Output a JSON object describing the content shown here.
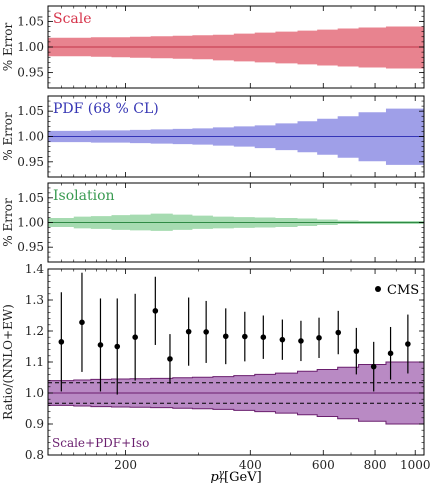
{
  "chart_data": {
    "type": "area",
    "x_axis": {
      "label_main": "p",
      "label_sup": "γ",
      "label_sub": "T",
      "label_unit": "[GeV]",
      "scale": "log",
      "range": [
        130,
        1050
      ],
      "tick_labels": [
        "200",
        "400",
        "600",
        "800",
        "1000"
      ],
      "tick_values": [
        200,
        400,
        600,
        800,
        1000
      ]
    },
    "bins": [
      [
        130,
        150
      ],
      [
        150,
        165
      ],
      [
        165,
        185
      ],
      [
        185,
        205
      ],
      [
        205,
        230
      ],
      [
        230,
        260
      ],
      [
        260,
        290
      ],
      [
        290,
        325
      ],
      [
        325,
        365
      ],
      [
        365,
        410
      ],
      [
        410,
        460
      ],
      [
        460,
        520
      ],
      [
        520,
        580
      ],
      [
        580,
        650
      ],
      [
        650,
        730
      ],
      [
        730,
        850
      ],
      [
        850,
        1050
      ]
    ],
    "panels": [
      {
        "id": "scale",
        "label": "Scale",
        "ylabel": "% Error",
        "ylim": [
          0.92,
          1.08
        ],
        "yticks": [
          0.95,
          1.0,
          1.05
        ],
        "ytick_labels": [
          "0.95",
          "1.00",
          "1.05"
        ],
        "band_color": "#e8838f",
        "line_color": "#c23448",
        "label_color": "#d6344b",
        "center": 1.0,
        "upper": [
          1.018,
          1.018,
          1.019,
          1.019,
          1.02,
          1.021,
          1.022,
          1.023,
          1.024,
          1.026,
          1.028,
          1.03,
          1.032,
          1.034,
          1.036,
          1.038,
          1.04
        ],
        "lower": [
          0.982,
          0.982,
          0.981,
          0.98,
          0.979,
          0.978,
          0.977,
          0.976,
          0.974,
          0.972,
          0.97,
          0.968,
          0.966,
          0.964,
          0.962,
          0.96,
          0.958
        ]
      },
      {
        "id": "pdf",
        "label": "PDF (68 % CL)",
        "ylabel": "% Error",
        "ylim": [
          0.92,
          1.08
        ],
        "yticks": [
          0.95,
          1.0,
          1.05
        ],
        "ytick_labels": [
          "0.95",
          "1.00",
          "1.05"
        ],
        "band_color": "#9f9fe8",
        "line_color": "#3535b8",
        "label_color": "#3636b4",
        "center": 1.0,
        "upper": [
          1.011,
          1.011,
          1.012,
          1.012,
          1.013,
          1.014,
          1.015,
          1.016,
          1.018,
          1.02,
          1.022,
          1.026,
          1.03,
          1.035,
          1.04,
          1.048,
          1.055
        ],
        "lower": [
          0.989,
          0.989,
          0.988,
          0.988,
          0.987,
          0.986,
          0.985,
          0.984,
          0.982,
          0.98,
          0.977,
          0.973,
          0.969,
          0.964,
          0.958,
          0.951,
          0.944
        ]
      },
      {
        "id": "isolation",
        "label": "Isolation",
        "ylabel": "% Error",
        "ylim": [
          0.92,
          1.08
        ],
        "yticks": [
          0.95,
          1.0,
          1.05
        ],
        "ytick_labels": [
          "0.95",
          "1.00",
          "1.05"
        ],
        "band_color": "#a6dbb1",
        "line_color": "#2f8a45",
        "label_color": "#3a9b52",
        "center": 1.0,
        "upper": [
          1.009,
          1.012,
          1.013,
          1.015,
          1.016,
          1.018,
          1.016,
          1.014,
          1.012,
          1.011,
          1.01,
          1.009,
          1.008,
          1.006,
          1.004,
          1.003,
          1.003
        ],
        "lower": [
          0.991,
          0.988,
          0.987,
          0.985,
          0.984,
          0.983,
          0.985,
          0.987,
          0.988,
          0.989,
          0.99,
          0.991,
          0.993,
          0.995,
          0.997,
          0.997,
          0.997
        ]
      }
    ],
    "ratio_panel": {
      "ylabel": "Ratio/(NNLO+EW)",
      "ylim": [
        0.8,
        1.4
      ],
      "yticks": [
        0.8,
        0.9,
        1.0,
        1.1,
        1.2,
        1.3,
        1.4
      ],
      "ytick_labels": [
        "0.8",
        "0.9",
        "1.0",
        "1.1",
        "1.2",
        "1.3",
        "1.4"
      ],
      "band_label": "Scale+PDF+Iso",
      "band_label_color": "#6a1f6e",
      "band_color": "#b98ac4",
      "edge_color": "#6a1f6e",
      "upper": [
        1.04,
        1.042,
        1.044,
        1.045,
        1.046,
        1.047,
        1.049,
        1.051,
        1.053,
        1.056,
        1.06,
        1.064,
        1.07,
        1.076,
        1.083,
        1.092,
        1.1
      ],
      "lower": [
        0.96,
        0.958,
        0.956,
        0.955,
        0.954,
        0.953,
        0.951,
        0.949,
        0.947,
        0.944,
        0.94,
        0.935,
        0.93,
        0.924,
        0.917,
        0.909,
        0.9
      ],
      "dashed_upper": 1.033,
      "dashed_lower": 0.967,
      "center": 1.0,
      "legend": {
        "label": "CMS",
        "marker": "filled-circle",
        "placement": "top-right"
      },
      "cms_points": [
        {
          "x": 140,
          "y": 1.165,
          "err": 0.16
        },
        {
          "x": 157,
          "y": 1.228,
          "err": 0.16
        },
        {
          "x": 174,
          "y": 1.155,
          "err": 0.15
        },
        {
          "x": 191,
          "y": 1.15,
          "err": 0.155
        },
        {
          "x": 211,
          "y": 1.18,
          "err": 0.14
        },
        {
          "x": 236,
          "y": 1.265,
          "err": 0.11
        },
        {
          "x": 256,
          "y": 1.11,
          "err": 0.08
        },
        {
          "x": 284,
          "y": 1.198,
          "err": 0.11
        },
        {
          "x": 313,
          "y": 1.197,
          "err": 0.1
        },
        {
          "x": 349,
          "y": 1.183,
          "err": 0.09
        },
        {
          "x": 388,
          "y": 1.182,
          "err": 0.08
        },
        {
          "x": 430,
          "y": 1.18,
          "err": 0.07
        },
        {
          "x": 478,
          "y": 1.172,
          "err": 0.065
        },
        {
          "x": 530,
          "y": 1.168,
          "err": 0.065
        },
        {
          "x": 586,
          "y": 1.178,
          "err": 0.065
        },
        {
          "x": 652,
          "y": 1.195,
          "err": 0.07
        },
        {
          "x": 721,
          "y": 1.135,
          "err": 0.075
        },
        {
          "x": 794,
          "y": 1.085,
          "err": 0.08
        },
        {
          "x": 872,
          "y": 1.128,
          "err": 0.085
        },
        {
          "x": 960,
          "y": 1.158,
          "err": 0.095
        }
      ]
    }
  }
}
